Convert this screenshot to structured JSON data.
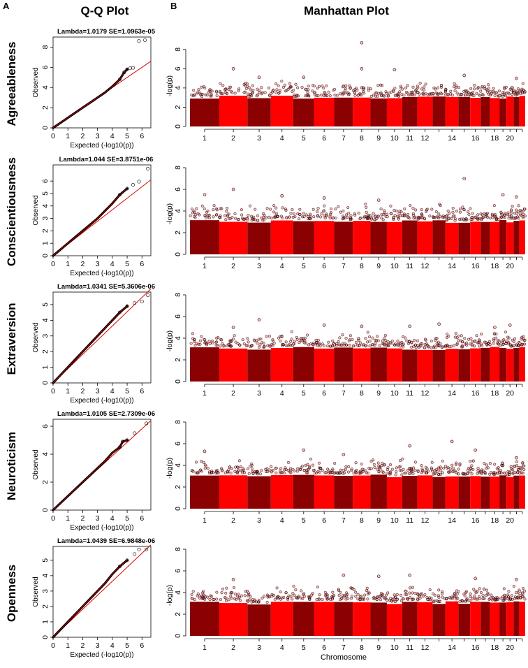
{
  "figure": {
    "panel_labels": [
      "A",
      "B"
    ],
    "column_titles": [
      "Q-Q Plot",
      "Manhattan Plot"
    ]
  },
  "qq_axes": {
    "xlabel": "Expected (-log10(p))",
    "ylabel": "Observed",
    "x_ticks": [
      "0",
      "1",
      "2",
      "3",
      "4",
      "5",
      "6"
    ]
  },
  "manhattan_axes": {
    "ylabel": "-log(p)",
    "y_ticks": [
      "0",
      "2",
      "4",
      "6",
      "8"
    ],
    "x_tick_labels": [
      "1",
      "2",
      "3",
      "4",
      "5",
      "6",
      "7",
      "8",
      "9",
      "10",
      "11",
      "12",
      "14",
      "16",
      "18",
      "20"
    ],
    "xlabel": "Chromosome"
  },
  "colors": {
    "dark_red": "#8b0000",
    "bright_red": "#ff0000",
    "qq_line": "#e00000",
    "point_fill": "#f2c4c4"
  },
  "chart_data": [
    {
      "type": "scatter",
      "trait": "Agreeableness",
      "qq": {
        "title": "Lambda=1.0179 SE=1.0963e-05",
        "xlim": [
          0,
          6.6
        ],
        "ylim": [
          0,
          9
        ],
        "y_ticks": [
          0,
          2,
          4,
          6,
          8
        ],
        "line": [
          [
            0,
            0
          ],
          [
            6.6,
            6.6
          ]
        ],
        "points": [
          [
            0.5,
            0.5
          ],
          [
            1,
            1.0
          ],
          [
            1.5,
            1.5
          ],
          [
            2,
            2.0
          ],
          [
            2.5,
            2.5
          ],
          [
            3,
            3.0
          ],
          [
            3.5,
            3.5
          ],
          [
            4,
            4.1
          ],
          [
            4.5,
            4.8
          ],
          [
            4.8,
            5.5
          ],
          [
            5.0,
            5.8
          ],
          [
            5.2,
            5.9
          ],
          [
            5.4,
            5.95
          ],
          [
            5.8,
            8.6
          ],
          [
            6.2,
            8.7
          ]
        ]
      },
      "manhattan": {
        "ylim": [
          0,
          9
        ],
        "peaks": [
          {
            "chr": 2,
            "p": 6.0
          },
          {
            "chr": 3,
            "p": 5.1
          },
          {
            "chr": 5,
            "p": 5.1
          },
          {
            "chr": 8,
            "p": 8.7
          },
          {
            "chr": 8,
            "p": 6.0
          },
          {
            "chr": 10,
            "p": 5.9
          },
          {
            "chr": 15,
            "p": 5.3
          },
          {
            "chr": 21,
            "p": 5.0
          }
        ]
      }
    },
    {
      "type": "scatter",
      "trait": "Conscientiousness",
      "qq": {
        "title": "Lambda=1.044 SE=3.8751e-06",
        "xlim": [
          0,
          6.6
        ],
        "ylim": [
          0,
          7.3
        ],
        "y_ticks": [
          0,
          1,
          2,
          3,
          4,
          5,
          6
        ],
        "line": [
          [
            0,
            0
          ],
          [
            6.6,
            6.1
          ]
        ],
        "points": [
          [
            0.5,
            0.5
          ],
          [
            1,
            1.0
          ],
          [
            1.5,
            1.5
          ],
          [
            2,
            2.0
          ],
          [
            2.5,
            2.5
          ],
          [
            3,
            3.0
          ],
          [
            3.5,
            3.6
          ],
          [
            4,
            4.2
          ],
          [
            4.5,
            4.9
          ],
          [
            5.0,
            5.4
          ],
          [
            5.4,
            5.7
          ],
          [
            5.8,
            5.95
          ],
          [
            6.4,
            7.0
          ]
        ]
      },
      "manhattan": {
        "ylim": [
          0,
          8
        ],
        "peaks": [
          {
            "chr": 1,
            "p": 5.5
          },
          {
            "chr": 2,
            "p": 6.0
          },
          {
            "chr": 4,
            "p": 5.4
          },
          {
            "chr": 6,
            "p": 5.2
          },
          {
            "chr": 9,
            "p": 5.0
          },
          {
            "chr": 15,
            "p": 7.0
          },
          {
            "chr": 19,
            "p": 5.5
          },
          {
            "chr": 21,
            "p": 5.3
          }
        ]
      }
    },
    {
      "type": "scatter",
      "trait": "Extraversion",
      "qq": {
        "title": "Lambda=1.0341 SE=5.3606e-06",
        "xlim": [
          0,
          6.6
        ],
        "ylim": [
          0,
          5.8
        ],
        "y_ticks": [
          0,
          1,
          2,
          3,
          4,
          5
        ],
        "line": [
          [
            0,
            0
          ],
          [
            6.6,
            6.0
          ]
        ],
        "points": [
          [
            0.5,
            0.5
          ],
          [
            1,
            1.0
          ],
          [
            1.5,
            1.5
          ],
          [
            2,
            2.0
          ],
          [
            2.5,
            2.5
          ],
          [
            3,
            3.0
          ],
          [
            3.5,
            3.5
          ],
          [
            4,
            4.0
          ],
          [
            4.5,
            4.5
          ],
          [
            5.0,
            4.9
          ],
          [
            5.5,
            5.1
          ],
          [
            6.0,
            5.2
          ],
          [
            6.4,
            5.6
          ]
        ]
      },
      "manhattan": {
        "ylim": [
          0,
          8
        ],
        "peaks": [
          {
            "chr": 2,
            "p": 5.0
          },
          {
            "chr": 3,
            "p": 5.7
          },
          {
            "chr": 6,
            "p": 5.2
          },
          {
            "chr": 8,
            "p": 5.1
          },
          {
            "chr": 11,
            "p": 5.1
          },
          {
            "chr": 13,
            "p": 5.3
          },
          {
            "chr": 18,
            "p": 5.0
          },
          {
            "chr": 20,
            "p": 5.2
          }
        ]
      }
    },
    {
      "type": "scatter",
      "trait": "Neuroticism",
      "qq": {
        "title": "Lambda=1.0105 SE=2.7309e-06",
        "xlim": [
          0,
          6.6
        ],
        "ylim": [
          0,
          6.5
        ],
        "y_ticks": [
          0,
          2,
          4,
          6
        ],
        "line": [
          [
            0,
            0
          ],
          [
            6.6,
            6.4
          ]
        ],
        "points": [
          [
            0.5,
            0.5
          ],
          [
            1,
            1.0
          ],
          [
            1.5,
            1.5
          ],
          [
            2,
            2.0
          ],
          [
            2.5,
            2.5
          ],
          [
            3,
            3.0
          ],
          [
            3.5,
            3.5
          ],
          [
            4,
            4.1
          ],
          [
            4.5,
            4.5
          ],
          [
            4.7,
            4.9
          ],
          [
            5.0,
            5.0
          ],
          [
            5.5,
            5.5
          ],
          [
            6.3,
            6.2
          ]
        ]
      },
      "manhattan": {
        "ylim": [
          0,
          8
        ],
        "peaks": [
          {
            "chr": 1,
            "p": 5.3
          },
          {
            "chr": 5,
            "p": 5.4
          },
          {
            "chr": 7,
            "p": 5.0
          },
          {
            "chr": 11,
            "p": 5.8
          },
          {
            "chr": 14,
            "p": 6.2
          },
          {
            "chr": 16,
            "p": 5.4
          },
          {
            "chr": 21,
            "p": 4.7
          }
        ]
      }
    },
    {
      "type": "scatter",
      "trait": "Openness",
      "qq": {
        "title": "Lambda=1.0439 SE=6.9848e-06",
        "xlim": [
          0,
          6.6
        ],
        "ylim": [
          0,
          5.9
        ],
        "y_ticks": [
          0,
          1,
          2,
          3,
          4,
          5
        ],
        "line": [
          [
            0,
            0
          ],
          [
            6.6,
            6.0
          ]
        ],
        "points": [
          [
            0.5,
            0.5
          ],
          [
            1,
            1.0
          ],
          [
            1.5,
            1.5
          ],
          [
            2,
            2.0
          ],
          [
            2.5,
            2.5
          ],
          [
            3,
            3.0
          ],
          [
            3.5,
            3.5
          ],
          [
            4,
            4.1
          ],
          [
            4.5,
            4.6
          ],
          [
            5.0,
            5.0
          ],
          [
            5.5,
            5.4
          ],
          [
            5.8,
            5.7
          ],
          [
            6.3,
            5.7
          ]
        ]
      },
      "manhattan": {
        "ylim": [
          0,
          8
        ],
        "peaks": [
          {
            "chr": 2,
            "p": 5.2
          },
          {
            "chr": 7,
            "p": 5.6
          },
          {
            "chr": 9,
            "p": 5.5
          },
          {
            "chr": 11,
            "p": 5.6
          },
          {
            "chr": 16,
            "p": 5.3
          },
          {
            "chr": 21,
            "p": 5.2
          }
        ]
      }
    }
  ]
}
